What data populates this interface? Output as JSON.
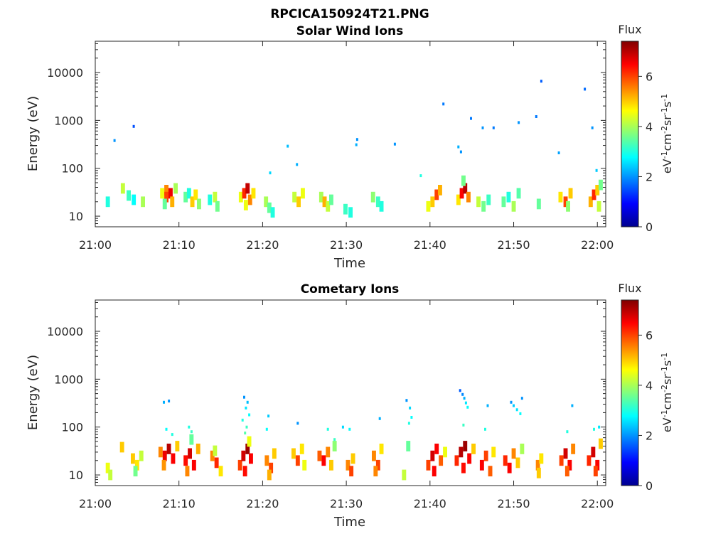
{
  "figure": {
    "title": "RPCICA150924T21.PNG"
  },
  "chart_data": [
    {
      "type": "heatmap",
      "title": "Solar Wind Ions",
      "xlabel": "Time",
      "ylabel": "Energy (eV)",
      "x_ticks": [
        "21:00",
        "21:10",
        "21:20",
        "21:30",
        "21:40",
        "21:50",
        "22:00"
      ],
      "y_ticks": [
        "10",
        "100",
        "1000",
        "10000"
      ],
      "y_scale": "log",
      "ylim": [
        6,
        45000
      ],
      "xlim": [
        "21:00",
        "22:01"
      ],
      "colorbar": {
        "label": "Flux",
        "unit": "eV-1cm-2sr-1s-1",
        "ticks": [
          "0",
          "2",
          "4",
          "6"
        ],
        "range": [
          0,
          7.4
        ],
        "colormap": "jet"
      },
      "cells": [
        [
          "21:01.5",
          20,
          3.0
        ],
        [
          "21:03.3",
          38,
          4.2
        ],
        [
          "21:04.0",
          27,
          3.2
        ],
        [
          "21:04.6",
          22,
          2.8
        ],
        [
          "21:05.7",
          20,
          4.0
        ],
        [
          "21:08.0",
          30,
          4.5
        ],
        [
          "21:08.5",
          35,
          5.5
        ],
        [
          "21:08.5",
          25,
          6.0
        ],
        [
          "21:09.0",
          30,
          6.6
        ],
        [
          "21:09.2",
          20,
          5.2
        ],
        [
          "21:08.3",
          18,
          3.5
        ],
        [
          "21:09.6",
          38,
          4.0
        ],
        [
          "21:10.8",
          25,
          3.5
        ],
        [
          "21:11.2",
          30,
          3.0
        ],
        [
          "21:11.6",
          20,
          5.0
        ],
        [
          "21:12.0",
          28,
          4.8
        ],
        [
          "21:12.4",
          18,
          3.8
        ],
        [
          "21:13.7",
          22,
          3.0
        ],
        [
          "21:14.3",
          25,
          4.2
        ],
        [
          "21:14.6",
          16,
          3.6
        ],
        [
          "21:17.4",
          25,
          4.5
        ],
        [
          "21:17.8",
          30,
          6.2
        ],
        [
          "21:18.2",
          38,
          6.9
        ],
        [
          "21:18.5",
          22,
          5.5
        ],
        [
          "21:18.0",
          17,
          4.5
        ],
        [
          "21:18.9",
          30,
          4.8
        ],
        [
          "21:20.4",
          20,
          4.0
        ],
        [
          "21:20.8",
          15,
          3.5
        ],
        [
          "21:21.2",
          12,
          3.0
        ],
        [
          "21:23.8",
          25,
          4.2
        ],
        [
          "21:24.3",
          20,
          5.0
        ],
        [
          "21:24.8",
          30,
          4.5
        ],
        [
          "21:27.0",
          25,
          4.0
        ],
        [
          "21:27.4",
          20,
          5.2
        ],
        [
          "21:27.8",
          16,
          4.2
        ],
        [
          "21:28.2",
          22,
          3.5
        ],
        [
          "21:29.9",
          14,
          3.2
        ],
        [
          "21:30.5",
          12,
          3.0
        ],
        [
          "21:33.2",
          25,
          3.8
        ],
        [
          "21:33.8",
          20,
          3.2
        ],
        [
          "21:34.2",
          16,
          3.0
        ],
        [
          "21:40.3",
          20,
          5.0
        ],
        [
          "21:40.8",
          28,
          6.0
        ],
        [
          "21:41.2",
          35,
          5.2
        ],
        [
          "21:39.8",
          16,
          4.5
        ],
        [
          "21:43.4",
          22,
          4.8
        ],
        [
          "21:43.8",
          30,
          6.5
        ],
        [
          "21:44.2",
          38,
          7.0
        ],
        [
          "21:44.6",
          25,
          5.5
        ],
        [
          "21:44.0",
          55,
          3.6
        ],
        [
          "21:45.8",
          20,
          4.2
        ],
        [
          "21:46.4",
          16,
          3.6
        ],
        [
          "21:47.0",
          22,
          3.2
        ],
        [
          "21:48.8",
          20,
          3.5
        ],
        [
          "21:49.4",
          25,
          3.0
        ],
        [
          "21:50.0",
          16,
          4.0
        ],
        [
          "21:50.6",
          30,
          3.4
        ],
        [
          "21:53.0",
          18,
          3.5
        ],
        [
          "21:55.6",
          25,
          4.8
        ],
        [
          "21:56.2",
          20,
          6.0
        ],
        [
          "21:56.8",
          30,
          5.0
        ],
        [
          "21:56.5",
          16,
          3.8
        ],
        [
          "21:59.2",
          20,
          5.2
        ],
        [
          "21:59.6",
          28,
          6.2
        ],
        [
          "22:00.0",
          35,
          5.0
        ],
        [
          "22:00.4",
          45,
          3.6
        ],
        [
          "22:00.2",
          16,
          4.2
        ]
      ],
      "points": [
        [
          "21:02.3",
          380,
          2.0
        ],
        [
          "21:04.6",
          750,
          1.5
        ],
        [
          "21:20.9",
          80,
          2.5
        ],
        [
          "21:23.0",
          290,
          2.3
        ],
        [
          "21:24.1",
          120,
          2.2
        ],
        [
          "21:31.3",
          400,
          2.0
        ],
        [
          "21:31.2",
          310,
          2.2
        ],
        [
          "21:35.8",
          320,
          2.0
        ],
        [
          "21:41.6",
          2200,
          1.8
        ],
        [
          "21:43.4",
          280,
          2.2
        ],
        [
          "21:43.7",
          220,
          2.0
        ],
        [
          "21:44.9",
          1100,
          1.8
        ],
        [
          "21:46.3",
          700,
          2.0
        ],
        [
          "21:47.6",
          700,
          1.8
        ],
        [
          "21:50.6",
          900,
          2.0
        ],
        [
          "21:52.7",
          1200,
          1.8
        ],
        [
          "21:53.3",
          6600,
          1.6
        ],
        [
          "21:55.4",
          210,
          2.1
        ],
        [
          "21:58.5",
          4500,
          1.7
        ],
        [
          "21:59.4",
          700,
          2.0
        ],
        [
          "21:59.9",
          90,
          2.4
        ],
        [
          "21:38.9",
          70,
          3.0
        ]
      ]
    },
    {
      "type": "heatmap",
      "title": "Cometary Ions",
      "xlabel": "Time",
      "ylabel": "Energy (eV)",
      "x_ticks": [
        "21:00",
        "21:10",
        "21:20",
        "21:30",
        "21:40",
        "21:50",
        "22:00"
      ],
      "y_ticks": [
        "10",
        "100",
        "1000",
        "10000"
      ],
      "y_scale": "log",
      "ylim": [
        6,
        45000
      ],
      "xlim": [
        "21:00",
        "22:01"
      ],
      "colorbar": {
        "label": "Flux",
        "unit": "eV-1cm-2sr-1s-1",
        "ticks": [
          "0",
          "2",
          "4",
          "6"
        ],
        "range": [
          0,
          7.4
        ],
        "colormap": "jet"
      },
      "cells": [
        [
          "21:01.5",
          14,
          4.5
        ],
        [
          "21:01.8",
          10,
          4.2
        ],
        [
          "21:03.2",
          38,
          5.0
        ],
        [
          "21:04.5",
          22,
          5.0
        ],
        [
          "21:05.0",
          16,
          4.8
        ],
        [
          "21:05.5",
          25,
          4.2
        ],
        [
          "21:04.8",
          12,
          3.6
        ],
        [
          "21:07.8",
          30,
          5.5
        ],
        [
          "21:08.3",
          25,
          6.6
        ],
        [
          "21:08.8",
          35,
          7.0
        ],
        [
          "21:09.3",
          22,
          6.5
        ],
        [
          "21:08.2",
          16,
          5.4
        ],
        [
          "21:09.8",
          40,
          5.0
        ],
        [
          "21:10.8",
          20,
          6.4
        ],
        [
          "21:11.3",
          28,
          6.8
        ],
        [
          "21:11.8",
          16,
          6.5
        ],
        [
          "21:12.3",
          35,
          5.2
        ],
        [
          "21:11.0",
          12,
          5.5
        ],
        [
          "21:11.5",
          55,
          3.5
        ],
        [
          "21:14.0",
          25,
          5.5
        ],
        [
          "21:14.5",
          18,
          6.2
        ],
        [
          "21:15.0",
          12,
          4.8
        ],
        [
          "21:14.3",
          32,
          4.2
        ],
        [
          "21:17.3",
          16,
          6.0
        ],
        [
          "21:17.7",
          25,
          6.8
        ],
        [
          "21:18.2",
          35,
          7.2
        ],
        [
          "21:18.6",
          22,
          6.5
        ],
        [
          "21:17.9",
          12,
          6.4
        ],
        [
          "21:18.4",
          50,
          4.5
        ],
        [
          "21:20.5",
          20,
          5.5
        ],
        [
          "21:21.0",
          14,
          6.0
        ],
        [
          "21:21.4",
          28,
          5.0
        ],
        [
          "21:20.8",
          10,
          5.2
        ],
        [
          "21:23.7",
          28,
          5.0
        ],
        [
          "21:24.2",
          20,
          6.0
        ],
        [
          "21:24.7",
          35,
          4.8
        ],
        [
          "21:25.0",
          16,
          4.5
        ],
        [
          "21:26.8",
          25,
          5.8
        ],
        [
          "21:27.3",
          20,
          6.5
        ],
        [
          "21:27.8",
          30,
          5.5
        ],
        [
          "21:28.2",
          16,
          5.0
        ],
        [
          "21:28.6",
          40,
          3.8
        ],
        [
          "21:30.2",
          16,
          5.5
        ],
        [
          "21:30.6",
          12,
          6.0
        ],
        [
          "21:30.8",
          22,
          5.0
        ],
        [
          "21:33.3",
          25,
          5.5
        ],
        [
          "21:33.8",
          16,
          6.0
        ],
        [
          "21:34.2",
          35,
          4.8
        ],
        [
          "21:33.5",
          12,
          5.5
        ],
        [
          "21:36.9",
          10,
          4.2
        ],
        [
          "21:37.4",
          40,
          3.5
        ],
        [
          "21:39.8",
          16,
          6.0
        ],
        [
          "21:40.3",
          25,
          6.8
        ],
        [
          "21:40.8",
          35,
          6.5
        ],
        [
          "21:41.3",
          20,
          5.8
        ],
        [
          "21:40.5",
          12,
          6.5
        ],
        [
          "21:41.8",
          30,
          4.5
        ],
        [
          "21:43.2",
          20,
          6.2
        ],
        [
          "21:43.7",
          30,
          7.0
        ],
        [
          "21:44.2",
          40,
          7.2
        ],
        [
          "21:44.7",
          22,
          6.5
        ],
        [
          "21:44.0",
          14,
          6.4
        ],
        [
          "21:45.2",
          35,
          5.0
        ],
        [
          "21:46.2",
          16,
          6.5
        ],
        [
          "21:46.7",
          25,
          6.0
        ],
        [
          "21:47.2",
          12,
          5.8
        ],
        [
          "21:47.6",
          30,
          4.8
        ],
        [
          "21:49.0",
          20,
          6.2
        ],
        [
          "21:49.5",
          14,
          6.5
        ],
        [
          "21:50.0",
          28,
          5.5
        ],
        [
          "21:50.5",
          18,
          5.0
        ],
        [
          "21:51.0",
          35,
          4.0
        ],
        [
          "21:52.9",
          16,
          5.5
        ],
        [
          "21:53.3",
          22,
          4.8
        ],
        [
          "21:53.0",
          11,
          5.0
        ],
        [
          "21:55.7",
          20,
          6.0
        ],
        [
          "21:56.2",
          28,
          6.8
        ],
        [
          "21:56.7",
          16,
          6.5
        ],
        [
          "21:57.1",
          35,
          5.5
        ],
        [
          "21:56.4",
          12,
          5.8
        ],
        [
          "21:59.0",
          20,
          6.2
        ],
        [
          "21:59.5",
          30,
          6.8
        ],
        [
          "22:00.0",
          16,
          6.5
        ],
        [
          "22:00.4",
          45,
          5.0
        ],
        [
          "21:59.8",
          12,
          6.0
        ]
      ],
      "points": [
        [
          "21:08.2",
          330,
          2.2
        ],
        [
          "21:08.8",
          350,
          2.0
        ],
        [
          "21:08.5",
          90,
          2.8
        ],
        [
          "21:09.2",
          70,
          3.0
        ],
        [
          "21:11.2",
          100,
          3.0
        ],
        [
          "21:11.5",
          80,
          3.2
        ],
        [
          "21:17.8",
          420,
          2.0
        ],
        [
          "21:18.2",
          330,
          2.3
        ],
        [
          "21:18.0",
          250,
          2.6
        ],
        [
          "21:18.4",
          180,
          2.8
        ],
        [
          "21:17.6",
          140,
          3.0
        ],
        [
          "21:18.1",
          100,
          3.2
        ],
        [
          "21:17.9",
          75,
          3.4
        ],
        [
          "21:20.7",
          170,
          2.4
        ],
        [
          "21:20.5",
          90,
          2.8
        ],
        [
          "21:24.2",
          120,
          2.0
        ],
        [
          "21:27.8",
          90,
          3.0
        ],
        [
          "21:28.6",
          55,
          3.2
        ],
        [
          "21:29.6",
          100,
          2.5
        ],
        [
          "21:30.4",
          90,
          2.8
        ],
        [
          "21:34.0",
          150,
          2.2
        ],
        [
          "21:37.2",
          360,
          2.0
        ],
        [
          "21:37.6",
          250,
          2.5
        ],
        [
          "21:37.8",
          160,
          2.8
        ],
        [
          "21:37.5",
          120,
          3.0
        ],
        [
          "21:43.6",
          580,
          1.6
        ],
        [
          "21:43.9",
          480,
          1.9
        ],
        [
          "21:44.1",
          400,
          2.2
        ],
        [
          "21:44.3",
          320,
          2.6
        ],
        [
          "21:44.5",
          260,
          2.8
        ],
        [
          "21:44.0",
          110,
          3.2
        ],
        [
          "21:46.9",
          280,
          2.2
        ],
        [
          "21:46.6",
          90,
          3.0
        ],
        [
          "21:49.7",
          330,
          2.0
        ],
        [
          "21:50.0",
          280,
          2.4
        ],
        [
          "21:50.4",
          230,
          2.6
        ],
        [
          "21:50.8",
          190,
          2.8
        ],
        [
          "21:51.0",
          400,
          2.0
        ],
        [
          "21:56.4",
          80,
          3.0
        ],
        [
          "21:57.0",
          280,
          2.2
        ],
        [
          "21:59.6",
          90,
          3.0
        ],
        [
          "22:00.2",
          100,
          2.6
        ]
      ]
    }
  ]
}
